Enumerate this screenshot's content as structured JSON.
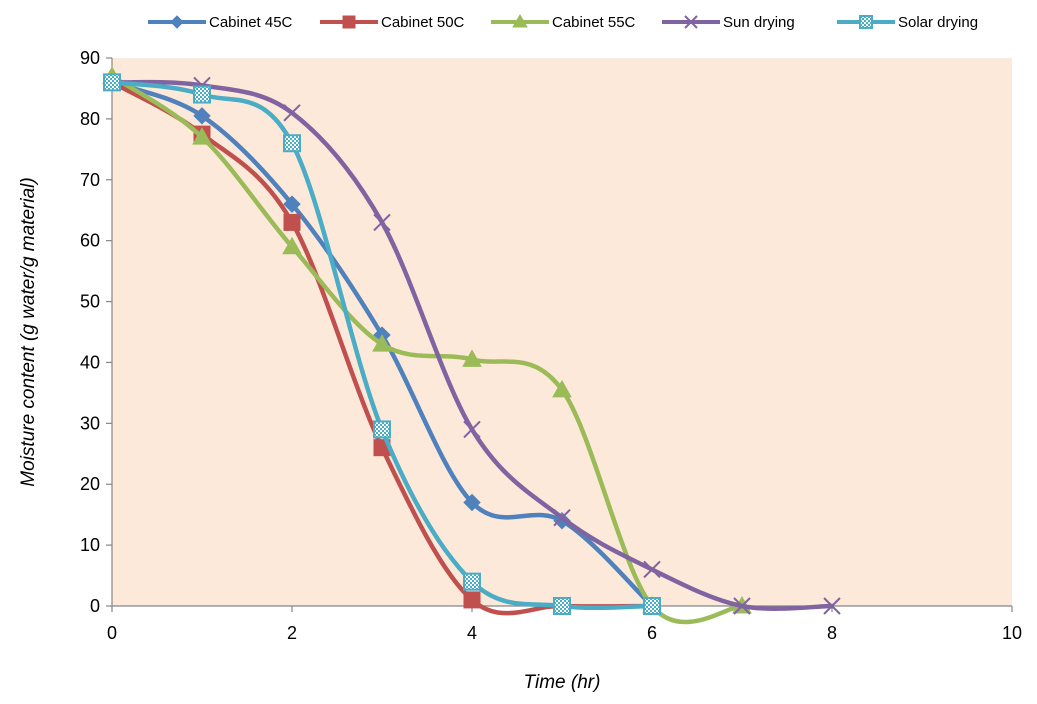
{
  "chart_data": {
    "type": "line",
    "title": "",
    "xlabel": "Time (hr)",
    "ylabel": "Moisture content (g water/g material)",
    "xlim": [
      0,
      10
    ],
    "ylim": [
      0,
      90
    ],
    "x_ticks": [
      "0",
      "2",
      "4",
      "6",
      "8",
      "10"
    ],
    "y_ticks": [
      "0",
      "10",
      "20",
      "30",
      "40",
      "50",
      "60",
      "70",
      "80",
      "90"
    ],
    "grid": false,
    "smooth": true,
    "plot_background": "#fde9d9",
    "legend_position": "top",
    "series": [
      {
        "name": "Cabinet 45C",
        "color": "#4f81bd",
        "marker": "diamond",
        "x": [
          0,
          1,
          2,
          3,
          4,
          5,
          6
        ],
        "y": [
          86.0,
          80.5,
          66.0,
          44.5,
          17.0,
          14.0,
          0.0
        ]
      },
      {
        "name": "Cabinet 50C",
        "color": "#c0504d",
        "marker": "square",
        "x": [
          0,
          1,
          2,
          3,
          4,
          5,
          6
        ],
        "y": [
          86.0,
          77.5,
          63.0,
          26.0,
          1.0,
          0.0,
          0.0
        ]
      },
      {
        "name": "Cabinet 55C",
        "color": "#9bbb59",
        "marker": "triangle",
        "x": [
          0,
          1,
          2,
          3,
          4,
          5,
          6,
          7
        ],
        "y": [
          87.0,
          77.0,
          59.0,
          43.0,
          40.5,
          35.5,
          0.0,
          0.0
        ]
      },
      {
        "name": "Sun drying",
        "color": "#8064a2",
        "marker": "x",
        "x": [
          0,
          1,
          2,
          3,
          4,
          5,
          6,
          7,
          8
        ],
        "y": [
          86.0,
          85.5,
          81.0,
          63.0,
          29.0,
          14.5,
          6.0,
          0.0,
          0.0
        ]
      },
      {
        "name": "Solar drying",
        "color": "#4bacc6",
        "marker": "box-pattern",
        "x": [
          0,
          1,
          2,
          3,
          4,
          5,
          6
        ],
        "y": [
          86.0,
          84.0,
          76.0,
          29.0,
          4.0,
          0.0,
          0.0
        ]
      }
    ]
  }
}
